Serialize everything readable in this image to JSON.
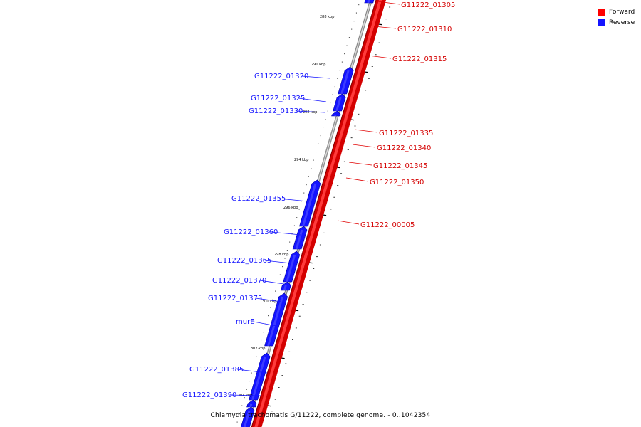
{
  "legend": [
    {
      "label": "Forward",
      "color": "#ff0000"
    },
    {
      "label": "Reverse",
      "color": "#1414ff"
    }
  ],
  "caption": "Chlamydia trachomatis G/11222, complete genome. - 0..1042354",
  "colors": {
    "forward": "#ff0000",
    "reverse": "#1414ff",
    "backbone": "#999999"
  },
  "kbp_marks": [
    "288 kbp",
    "290 kbp",
    "292 kbp",
    "294 kbp",
    "296 kbp",
    "298 kbp",
    "300 kbp",
    "302 kbp",
    "304 kbp"
  ],
  "reverse_genes": [
    "G11222_01320",
    "G11222_01325",
    "G11222_01330",
    "G11222_01355",
    "G11222_01360",
    "G11222_01365",
    "G11222_01370",
    "G11222_01375",
    "murE",
    "G11222_01385",
    "G11222_01390"
  ],
  "forward_genes": [
    "G11222_01305",
    "G11222_01310",
    "G11222_01315",
    "G11222_01335",
    "G11222_01340",
    "G11222_01345",
    "G11222_01350",
    "G11222_00005"
  ]
}
